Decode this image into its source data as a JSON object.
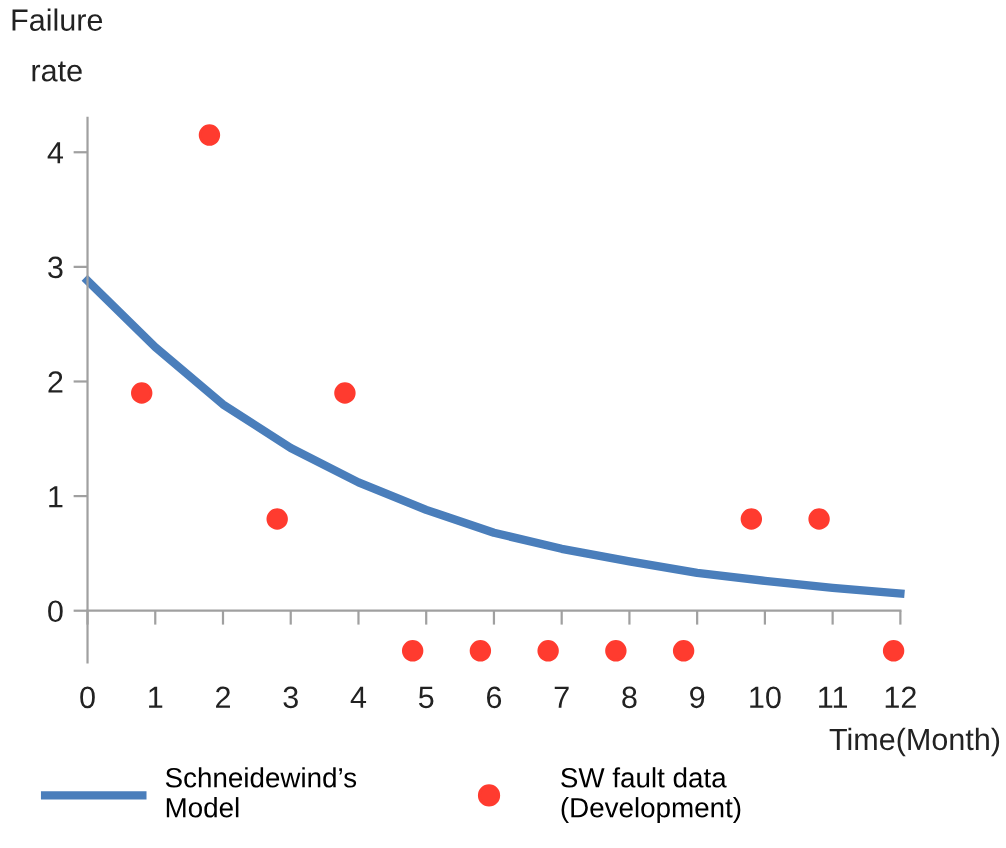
{
  "chart_data": {
    "type": "line",
    "xlabel": "Time(Month)",
    "ylabel": "Failure\nrate",
    "xlim": [
      0,
      12
    ],
    "xticks": [
      0,
      1,
      2,
      3,
      4,
      5,
      6,
      7,
      8,
      9,
      10,
      11,
      12
    ],
    "ylim": [
      -0.45,
      4.3
    ],
    "yticks": [
      0,
      1,
      2,
      3,
      4
    ],
    "grid": false,
    "legend": "bottom",
    "series": [
      {
        "name": "Schneidewind’s\nModel",
        "color": "#4a7ebb",
        "marker": "none",
        "line_style": "solid",
        "x": [
          0,
          1,
          2,
          3,
          4,
          5,
          6,
          7,
          8,
          9,
          10,
          11,
          12
        ],
        "values": [
          2.88,
          2.3,
          1.8,
          1.42,
          1.12,
          0.88,
          0.68,
          0.54,
          0.43,
          0.33,
          0.26,
          0.2,
          0.15
        ]
      },
      {
        "name": "SW fault data\n(Development)",
        "type": "scatter",
        "color": "#ff3b2f",
        "marker": "circle",
        "x": [
          0.8,
          1.8,
          2.8,
          3.8,
          4.8,
          5.8,
          6.8,
          7.8,
          8.8,
          9.8,
          10.8,
          11.9
        ],
        "values": [
          1.9,
          4.15,
          0.8,
          1.9,
          -0.35,
          -0.35,
          -0.35,
          -0.35,
          -0.35,
          0.8,
          0.8,
          -0.35
        ]
      }
    ]
  }
}
